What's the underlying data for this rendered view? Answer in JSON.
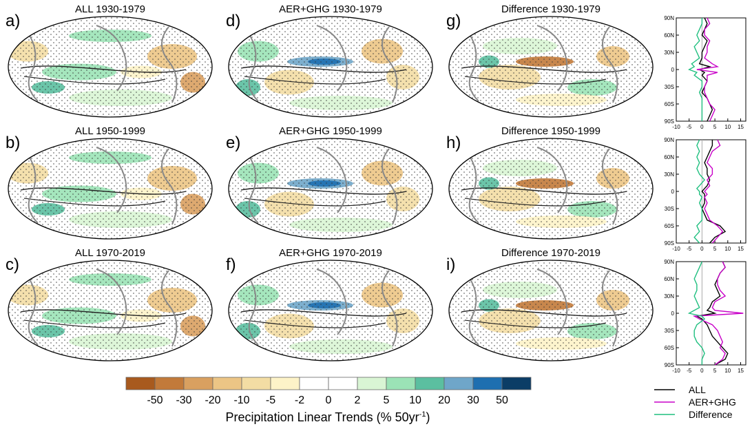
{
  "panels": [
    {
      "letter": "a)",
      "title": "ALL 1930-1979",
      "kind": "all"
    },
    {
      "letter": "b)",
      "title": "ALL 1950-1999",
      "kind": "all"
    },
    {
      "letter": "c)",
      "title": "ALL 1970-2019",
      "kind": "all"
    },
    {
      "letter": "d)",
      "title": "AER+GHG 1930-1979",
      "kind": "aer"
    },
    {
      "letter": "e)",
      "title": "AER+GHG 1950-1999",
      "kind": "aer"
    },
    {
      "letter": "f)",
      "title": "AER+GHG 1970-2019",
      "kind": "aer"
    },
    {
      "letter": "g)",
      "title": "Difference 1930-1979",
      "kind": "diff"
    },
    {
      "letter": "h)",
      "title": "Difference 1950-1999",
      "kind": "diff"
    },
    {
      "letter": "i)",
      "title": "Difference 1970-2019",
      "kind": "diff"
    }
  ],
  "colorbar": {
    "colors": [
      "#a85a1e",
      "#c27a3a",
      "#d9a060",
      "#ecc585",
      "#f3dda4",
      "#fdf3c8",
      "#ffffff",
      "#ffffff",
      "#d9f5d4",
      "#9be3b6",
      "#5bbfa0",
      "#6fa6c9",
      "#1e6fb0",
      "#0b3d66"
    ],
    "labels": [
      "-50",
      "-30",
      "-20",
      "-10",
      "-5",
      "-2",
      "0",
      "2",
      "5",
      "10",
      "20",
      "30",
      "50"
    ],
    "title": "Precipitation Linear Trends (% 50yr",
    "title_sup": "-1",
    "title_end": ")"
  },
  "legend": [
    {
      "name": "ALL",
      "color": "#000000"
    },
    {
      "name": "AER+GHG",
      "color": "#c800c8"
    },
    {
      "name": "Difference",
      "color": "#1fbf7f"
    }
  ],
  "chart_data": [
    {
      "type": "line",
      "title": "",
      "xlabel": "",
      "ylabel": "",
      "xlim": [
        -10,
        17
      ],
      "ylim": [
        -90,
        90
      ],
      "xticks": [
        "-10",
        "-5",
        "0",
        "5",
        "10",
        "15"
      ],
      "yticks": [
        "90N",
        "60N",
        "30N",
        "0",
        "30S",
        "60S",
        "90S"
      ],
      "lat": [
        90,
        80,
        70,
        60,
        50,
        40,
        30,
        20,
        10,
        5,
        0,
        -5,
        -10,
        -20,
        -30,
        -40,
        -50,
        -60,
        -70,
        -80,
        -90
      ],
      "series": [
        {
          "name": "ALL",
          "values": [
            1,
            2,
            1,
            0,
            2,
            1,
            0,
            0,
            -1,
            3,
            -1,
            1,
            0,
            2,
            1,
            0,
            2,
            3,
            4,
            3,
            2
          ]
        },
        {
          "name": "AER+GHG",
          "values": [
            2,
            3,
            1,
            1,
            3,
            2,
            2,
            1,
            4,
            6,
            -2,
            6,
            2,
            2,
            1,
            1,
            2,
            3,
            5,
            4,
            3
          ]
        },
        {
          "name": "Difference",
          "values": [
            0,
            0,
            -1,
            -2,
            -1,
            -3,
            -2,
            -1,
            -4,
            -3,
            -5,
            -2,
            -3,
            0,
            0,
            -1,
            0,
            0,
            0,
            0,
            0
          ]
        }
      ]
    },
    {
      "type": "line",
      "title": "",
      "xlabel": "",
      "ylabel": "",
      "xlim": [
        -10,
        17
      ],
      "ylim": [
        -90,
        90
      ],
      "xticks": [
        "-10",
        "-5",
        "0",
        "5",
        "10",
        "15"
      ],
      "yticks": [
        "90N",
        "60N",
        "30N",
        "0",
        "30S",
        "60S",
        "90S"
      ],
      "lat": [
        90,
        80,
        70,
        60,
        50,
        40,
        30,
        20,
        10,
        5,
        0,
        -5,
        -10,
        -20,
        -30,
        -40,
        -50,
        -60,
        -70,
        -80,
        -90
      ],
      "series": [
        {
          "name": "ALL",
          "values": [
            4,
            4,
            3,
            2,
            1,
            2,
            2,
            3,
            2,
            1,
            0,
            1,
            1,
            1,
            0,
            1,
            2,
            7,
            9,
            5,
            3
          ]
        },
        {
          "name": "AER+GHG",
          "values": [
            6,
            7,
            4,
            3,
            2,
            4,
            4,
            2,
            3,
            2,
            1,
            2,
            1,
            2,
            1,
            2,
            3,
            6,
            8,
            6,
            4
          ]
        },
        {
          "name": "Difference",
          "values": [
            -1,
            -2,
            -1,
            -2,
            -1,
            -2,
            -1,
            1,
            -1,
            -2,
            -1,
            -1,
            0,
            -1,
            0,
            0,
            0,
            -2,
            -1,
            -3,
            -1
          ]
        }
      ]
    },
    {
      "type": "line",
      "title": "",
      "xlabel": "",
      "ylabel": "",
      "xlim": [
        -10,
        17
      ],
      "ylim": [
        -90,
        90
      ],
      "xticks": [
        "-10",
        "-5",
        "0",
        "5",
        "10",
        "15"
      ],
      "yticks": [
        "90N",
        "60N",
        "30N",
        "0",
        "30S",
        "60S",
        "90S"
      ],
      "lat": [
        90,
        80,
        70,
        60,
        50,
        40,
        30,
        20,
        10,
        5,
        0,
        -5,
        -10,
        -20,
        -30,
        -40,
        -50,
        -60,
        -70,
        -80,
        -90
      ],
      "series": [
        {
          "name": "ALL",
          "values": [
            8,
            9,
            7,
            6,
            5,
            6,
            7,
            4,
            3,
            2,
            5,
            -2,
            0,
            2,
            3,
            4,
            6,
            8,
            10,
            9,
            5
          ]
        },
        {
          "name": "AER+GHG",
          "values": [
            8,
            9,
            7,
            6,
            6,
            7,
            9,
            5,
            4,
            5,
            16,
            -3,
            -1,
            4,
            6,
            7,
            8,
            7,
            9,
            8,
            5
          ]
        },
        {
          "name": "Difference",
          "values": [
            0,
            -1,
            -2,
            -3,
            -2,
            -2,
            -3,
            -2,
            -1,
            -3,
            -5,
            0,
            1,
            -2,
            -3,
            -3,
            -2,
            0,
            1,
            0,
            0
          ]
        }
      ]
    }
  ]
}
